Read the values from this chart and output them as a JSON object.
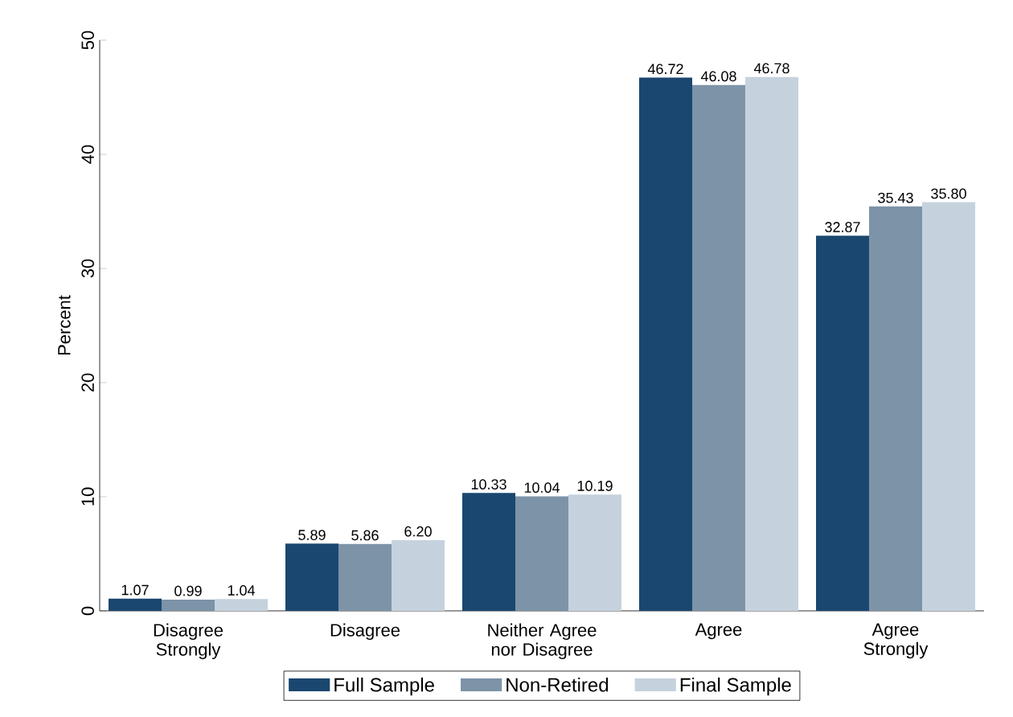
{
  "chart_data": {
    "type": "bar",
    "ylabel": "Percent",
    "categories": [
      "Disagree Strongly",
      "Disagree",
      "Neither Agree nor Disagree",
      "Agree",
      "Agree Strongly"
    ],
    "series": [
      {
        "name": "Full Sample",
        "color": "#1a476f",
        "values": [
          1.07,
          5.89,
          10.33,
          46.72,
          32.87
        ],
        "value_labels": [
          "1.07",
          "5.89",
          "10.33",
          "46.72",
          "32.87"
        ]
      },
      {
        "name": "Non-Retired",
        "color": "#7d93a8",
        "values": [
          0.99,
          5.86,
          10.04,
          46.08,
          35.43
        ],
        "value_labels": [
          "0.99",
          "5.86",
          "10.04",
          "46.08",
          "35.43"
        ]
      },
      {
        "name": "Final Sample",
        "color": "#c5d2de",
        "values": [
          1.04,
          6.2,
          10.19,
          46.78,
          35.8
        ],
        "value_labels": [
          "1.04",
          "6.20",
          "10.19",
          "46.78",
          "35.80"
        ]
      }
    ],
    "ylim": [
      0,
      50
    ],
    "yticks": [
      0,
      10,
      20,
      30,
      40,
      50
    ],
    "legend": "bottom"
  }
}
